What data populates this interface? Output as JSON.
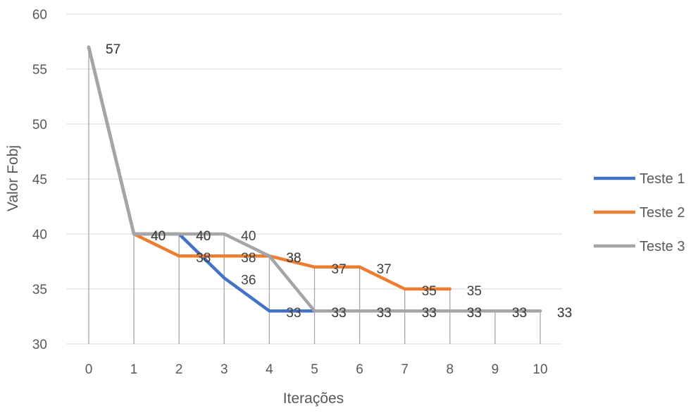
{
  "chart_data": {
    "type": "line",
    "title": "",
    "xlabel": "Iterações",
    "ylabel": "Valor Fobj",
    "x": [
      0,
      1,
      2,
      3,
      4,
      5,
      6,
      7,
      8,
      9,
      10
    ],
    "xlim": [
      0,
      10
    ],
    "ylim": [
      30,
      60
    ],
    "yticks": [
      30,
      35,
      40,
      45,
      50,
      55,
      60
    ],
    "grid": true,
    "drop_lines": true,
    "legend": "right",
    "series": [
      {
        "name": "Teste 1",
        "color": "#4472c4",
        "x": [
          0,
          1,
          2,
          3,
          4,
          5,
          6,
          7,
          8,
          9,
          10
        ],
        "values": [
          57,
          40,
          40,
          36,
          33,
          33,
          33,
          33,
          33,
          33,
          33
        ]
      },
      {
        "name": "Teste 2",
        "color": "#ed7d31",
        "x": [
          0,
          1,
          2,
          3,
          4,
          5,
          6,
          7,
          8
        ],
        "values": [
          57,
          40,
          38,
          38,
          38,
          37,
          37,
          35,
          35
        ]
      },
      {
        "name": "Teste 3",
        "color": "#a5a5a5",
        "x": [
          0,
          1,
          2,
          3,
          4,
          5,
          6,
          7,
          8,
          9,
          10
        ],
        "values": [
          57,
          40,
          40,
          40,
          38,
          33,
          33,
          33,
          33,
          33,
          33
        ]
      }
    ]
  }
}
